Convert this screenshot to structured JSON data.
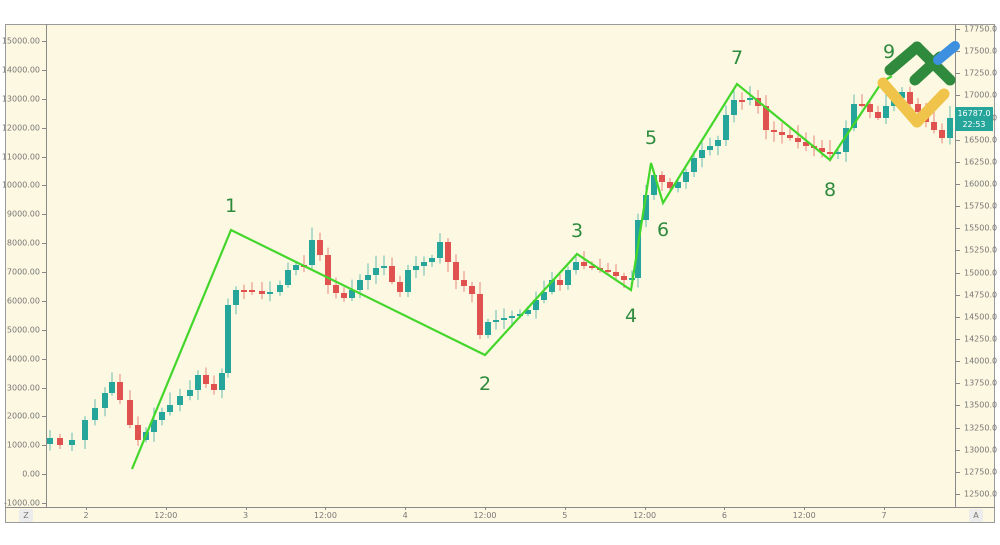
{
  "chart_data": {
    "type": "candlestick",
    "title": "",
    "description": "Candlestick price chart with Elliott wave-style zigzag overlay (points 1-9)",
    "left_axis": {
      "ticks": [
        "15000.00",
        "14000.00",
        "13000.00",
        "12000.00",
        "11000.00",
        "10000.00",
        "9000.00",
        "8000.00",
        "7000.00",
        "6000.00",
        "5000.00",
        "4000.00",
        "3000.00",
        "2000.00",
        "1000.00",
        "0.00",
        "-1000.00"
      ],
      "range": [
        -1000,
        15000
      ]
    },
    "right_axis": {
      "ticks": [
        "17750.0",
        "17500.0",
        "17250.0",
        "17000.0",
        "16750.0",
        "16500.0",
        "16250.0",
        "16000.0",
        "15750.0",
        "15500.0",
        "15250.0",
        "15000.0",
        "14750.0",
        "14500.0",
        "14250.0",
        "14000.0",
        "13750.0",
        "13500.0",
        "13250.0",
        "13000.0",
        "12750.0",
        "12500.0"
      ],
      "range": [
        12500,
        17750
      ]
    },
    "x_axis": {
      "ticks": [
        "2",
        "12:00",
        "3",
        "12:00",
        "4",
        "12:00",
        "5",
        "12:00",
        "6",
        "12:00",
        "7"
      ]
    },
    "last_price": "16787.0",
    "countdown": "22:53",
    "wave_points": [
      {
        "label": "",
        "value": 200
      },
      {
        "label": "1",
        "value": 8500
      },
      {
        "label": "2",
        "value": 4100
      },
      {
        "label": "3",
        "value": 7600
      },
      {
        "label": "4",
        "value": 6350
      },
      {
        "label": "5",
        "value": 10750
      },
      {
        "label": "6",
        "value": 9400
      },
      {
        "label": "7",
        "value": 13500
      },
      {
        "label": "8",
        "value": 10850
      },
      {
        "label": "9",
        "value": 13550
      }
    ],
    "colors": {
      "up": "#26a59a",
      "down": "#e0524f",
      "wave_line": "#43d62b",
      "wave_label": "#2e8b3e",
      "background": "#fdf8e1"
    }
  },
  "ui": {
    "corner_left": "Z",
    "corner_right": "A",
    "price_badge": {
      "price": "16787.0",
      "timer": "22:53"
    }
  },
  "logo": {
    "name": "brand-logo",
    "colors": {
      "green": "#2f8a3e",
      "yellow": "#f0c44a",
      "blue": "#3d8fe0"
    }
  }
}
